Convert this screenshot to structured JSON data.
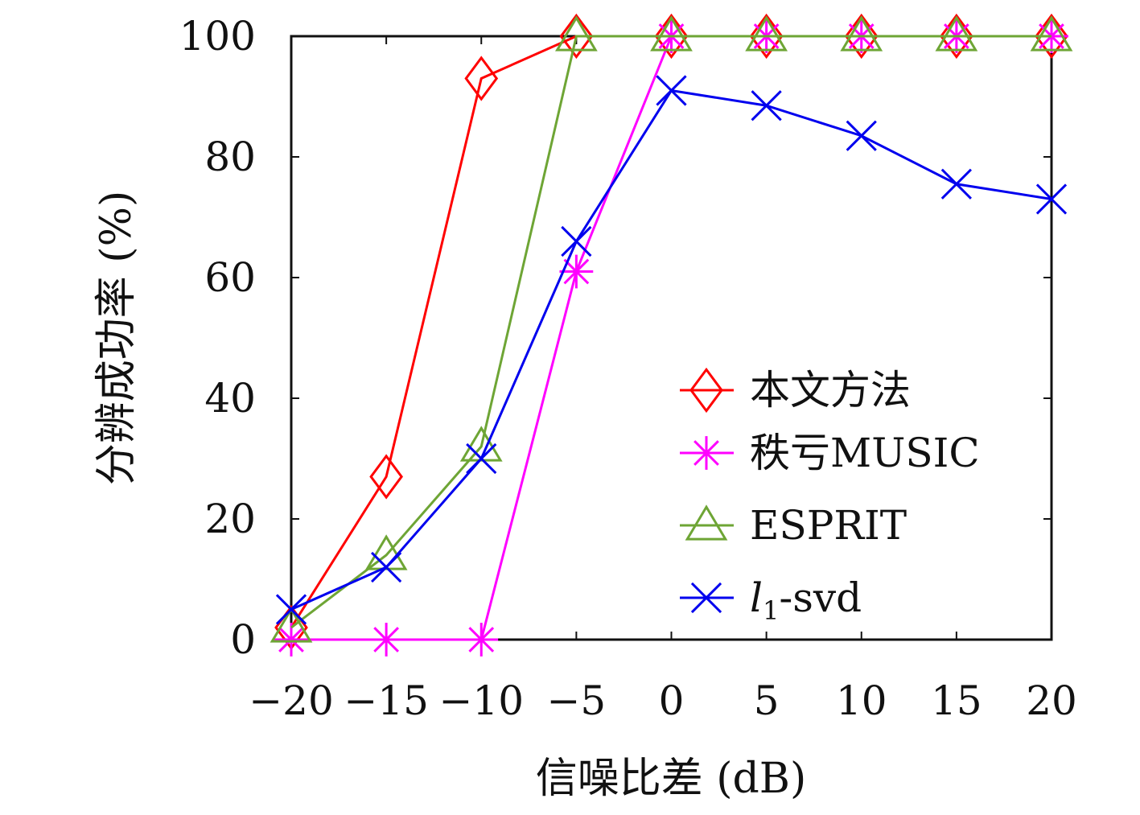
{
  "chart_data": {
    "type": "line",
    "title": "",
    "xlabel": "信噪比差 (dB)",
    "ylabel": "分辨成功率 (%)",
    "x": [
      -20,
      -15,
      -10,
      -5,
      0,
      5,
      10,
      15,
      20
    ],
    "xlim": [
      -20,
      20
    ],
    "ylim": [
      0,
      100
    ],
    "xticks": [
      "−20",
      "−15",
      "−10",
      "−5",
      "0",
      "5",
      "10",
      "15",
      "20"
    ],
    "yticks": [
      "0",
      "20",
      "40",
      "60",
      "80",
      "100"
    ],
    "grid": false,
    "legend_position": "bottom-right",
    "series": [
      {
        "name": "本文方法",
        "color": "#ff0000",
        "marker": "diamond",
        "values": [
          2,
          27,
          93,
          100,
          100,
          100,
          100,
          100,
          100
        ]
      },
      {
        "name": "秩亏MUSIC",
        "color": "#ff00ff",
        "marker": "asterisk",
        "values": [
          0,
          0,
          0,
          61,
          100,
          100,
          100,
          100,
          100
        ]
      },
      {
        "name": "ESPRIT",
        "color": "#6ea535",
        "marker": "triangle",
        "values": [
          2,
          14,
          32,
          100,
          100,
          100,
          100,
          100,
          100
        ]
      },
      {
        "name": "-svd",
        "name_prefix": "l",
        "name_subscript": "1",
        "color": "#0000ee",
        "marker": "cross",
        "values": [
          5,
          12,
          30,
          66,
          91,
          88.5,
          83.5,
          75.5,
          73
        ]
      }
    ]
  }
}
